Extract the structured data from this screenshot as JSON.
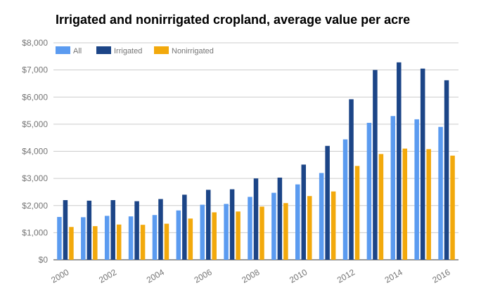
{
  "chart_data": {
    "type": "bar",
    "title": "Irrigated and nonirrigated cropland, average value per acre",
    "xlabel": "",
    "ylabel": "",
    "ylim": [
      0,
      8000
    ],
    "y_ticks": [
      "$0",
      "$1,000",
      "$2,000",
      "$3,000",
      "$4,000",
      "$5,000",
      "$6,000",
      "$7,000",
      "$8,000"
    ],
    "grid": true,
    "legend_position": "top-left",
    "categories": [
      "2000",
      "2001",
      "2002",
      "2003",
      "2004",
      "2005",
      "2006",
      "2007",
      "2008",
      "2009",
      "2010",
      "2011",
      "2012",
      "2013",
      "2014",
      "2015",
      "2016"
    ],
    "x_tick_labels": [
      "2000",
      "2002",
      "2004",
      "2006",
      "2008",
      "2010",
      "2012",
      "2014",
      "2016"
    ],
    "series": [
      {
        "name": "All",
        "color": "#5b9bf0",
        "values": [
          1580,
          1570,
          1620,
          1600,
          1650,
          1820,
          2030,
          2060,
          2320,
          2470,
          2780,
          3200,
          4440,
          5050,
          5300,
          5180,
          4900
        ]
      },
      {
        "name": "Irrigated",
        "color": "#1c4587",
        "values": [
          2200,
          2180,
          2200,
          2160,
          2240,
          2400,
          2580,
          2600,
          3000,
          3030,
          3510,
          4200,
          5920,
          7000,
          7280,
          7050,
          6620
        ]
      },
      {
        "name": "Nonirrigated",
        "color": "#f2a90c",
        "values": [
          1210,
          1240,
          1300,
          1290,
          1330,
          1520,
          1750,
          1780,
          1960,
          2090,
          2350,
          2520,
          3460,
          3900,
          4100,
          4080,
          3840
        ]
      }
    ]
  }
}
